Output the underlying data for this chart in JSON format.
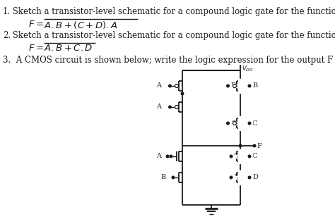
{
  "background_color": "#ffffff",
  "text_color": "#1a1a1a",
  "line_color": "#1a1a1a",
  "fig_width": 4.74,
  "fig_height": 3.11,
  "dpi": 100,
  "q1_number": "1.",
  "q1_body": " Sketch a transistor-level schematic for a compound logic gate for the function:",
  "q2_number": "2.",
  "q2_body": " Sketch a transistor-level schematic for a compound logic gate for the function:",
  "q3": "3.  A CMOS circuit is shown below; write the logic expression for the output F",
  "font_size_text": 8.0,
  "font_size_formula": 9.0
}
